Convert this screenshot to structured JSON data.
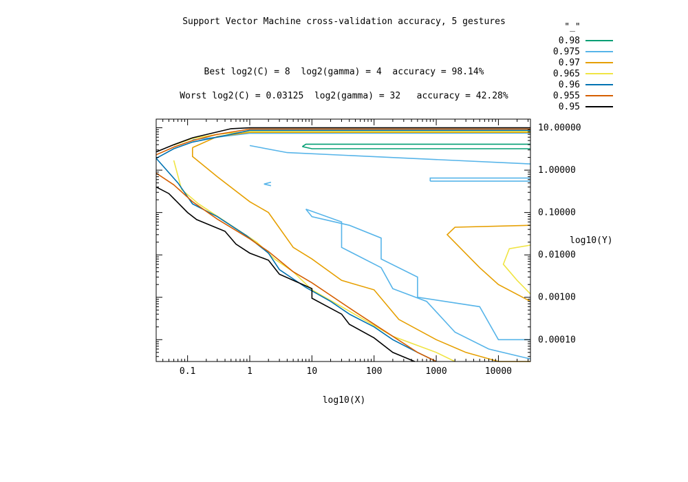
{
  "chart_data": {
    "type": "contour",
    "title": "Support Vector Machine cross-validation accuracy, 5 gestures",
    "subtitle_best": "Best log2(C) = 8  log2(gamma) = 4  accuracy = 98.14%",
    "subtitle_worst": "Worst log2(C) = 0.03125  log2(gamma) = 32   accuracy = 42.28%",
    "xlabel": "log10(X)",
    "ylabel": "log10(Y)",
    "x_scale": "log",
    "y_scale": "log",
    "xlim": [
      0.03125,
      32768
    ],
    "ylim": [
      3.05e-05,
      16
    ],
    "x_ticks": [
      "0.1",
      "1",
      "10",
      "100",
      "1000",
      "10000"
    ],
    "y_ticks": [
      "10.00000",
      "1.00000",
      "0.10000",
      "0.01000",
      "0.00100",
      "0.00010"
    ],
    "legend_title": "\"_\"",
    "legend_position": "top-right",
    "grid": false,
    "levels": [
      {
        "name": "0.98",
        "color": "#009e73",
        "paths": [
          [
            [
              7,
              3.6
            ],
            [
              8,
              4.1
            ],
            [
              32768,
              4.1
            ]
          ],
          [
            [
              7,
              3.6
            ],
            [
              10,
              3.2
            ],
            [
              32768,
              3.2
            ]
          ]
        ]
      },
      {
        "name": "0.975",
        "color": "#56b4e9",
        "paths": [
          [
            [
              32768,
              7.5
            ],
            [
              1,
              7.4
            ],
            [
              0.3,
              6
            ],
            [
              0.12,
              5.2
            ]
          ],
          [
            [
              1,
              3.8
            ],
            [
              4,
              2.6
            ],
            [
              32768,
              1.4
            ]
          ],
          [
            [
              800,
              0.55
            ],
            [
              32768,
              0.55
            ]
          ],
          [
            [
              800,
              0.55
            ],
            [
              800,
              0.65
            ],
            [
              32768,
              0.65
            ]
          ],
          [
            [
              2.2,
              0.52
            ],
            [
              1.7,
              0.47
            ],
            [
              2.2,
              0.43
            ]
          ],
          [
            [
              8,
              0.12
            ],
            [
              10,
              0.08
            ],
            [
              40,
              0.05
            ],
            [
              130,
              0.025
            ],
            [
              130,
              0.008
            ],
            [
              500,
              0.003
            ],
            [
              500,
              0.001
            ],
            [
              5000,
              0.0006
            ],
            [
              10000,
              0.0001
            ],
            [
              32768,
              0.0001
            ]
          ],
          [
            [
              8,
              0.12
            ],
            [
              30,
              0.06
            ],
            [
              30,
              0.015
            ],
            [
              130,
              0.005
            ],
            [
              200,
              0.0016
            ],
            [
              700,
              0.0008
            ],
            [
              2000,
              0.00015
            ],
            [
              7000,
              6e-05
            ],
            [
              32768,
              3.5e-05
            ]
          ]
        ]
      },
      {
        "name": "0.97",
        "color": "#e69f00",
        "paths": [
          [
            [
              0.12,
              3.4
            ],
            [
              0.3,
              6.2
            ],
            [
              1,
              7.8
            ],
            [
              32768,
              7.8
            ]
          ],
          [
            [
              0.12,
              3.4
            ],
            [
              0.12,
              2.1
            ],
            [
              0.3,
              0.7
            ],
            [
              1,
              0.18
            ],
            [
              2,
              0.1
            ],
            [
              5,
              0.015
            ],
            [
              10,
              0.008
            ],
            [
              30,
              0.0025
            ],
            [
              100,
              0.0015
            ],
            [
              250,
              0.0003
            ],
            [
              1000,
              0.0001
            ],
            [
              3000,
              5e-05
            ],
            [
              10000,
              3e-05
            ],
            [
              32768,
              2e-05
            ]
          ],
          [
            [
              32768,
              0.05
            ],
            [
              2000,
              0.045
            ],
            [
              1500,
              0.03
            ],
            [
              5000,
              0.005
            ],
            [
              10000,
              0.002
            ],
            [
              32768,
              0.0008
            ]
          ]
        ]
      },
      {
        "name": "0.965",
        "color": "#f0e442",
        "paths": [
          [
            [
              0.06,
              3.9
            ],
            [
              0.12,
              5.6
            ],
            [
              0.3,
              7
            ],
            [
              1,
              8.2
            ],
            [
              32768,
              8.2
            ]
          ],
          [
            [
              0.06,
              1.7
            ],
            [
              0.08,
              0.35
            ],
            [
              0.15,
              0.16
            ],
            [
              0.5,
              0.05
            ],
            [
              1.3,
              0.02
            ],
            [
              2.5,
              0.008
            ],
            [
              5,
              0.004
            ],
            [
              10,
              0.0015
            ],
            [
              30,
              0.0006
            ],
            [
              200,
              0.00012
            ],
            [
              1000,
              5e-05
            ],
            [
              2000,
              3e-05
            ]
          ],
          [
            [
              32768,
              0.017
            ],
            [
              15000,
              0.014
            ],
            [
              12000,
              0.006
            ],
            [
              20000,
              0.0025
            ],
            [
              32768,
              0.0012
            ]
          ]
        ]
      },
      {
        "name": "0.96",
        "color": "#0072b2",
        "paths": [
          [
            [
              0.03125,
              1.9
            ],
            [
              0.06,
              3.2
            ],
            [
              0.12,
              4.6
            ],
            [
              0.3,
              6
            ],
            [
              1,
              8.7
            ],
            [
              32768,
              8.7
            ]
          ],
          [
            [
              0.03125,
              1.9
            ],
            [
              0.07,
              0.5
            ],
            [
              0.12,
              0.16
            ],
            [
              0.3,
              0.08
            ],
            [
              0.9,
              0.028
            ],
            [
              2,
              0.011
            ],
            [
              3,
              0.0045
            ],
            [
              8,
              0.0017
            ],
            [
              20,
              0.0008
            ],
            [
              40,
              0.0004
            ],
            [
              100,
              0.0002
            ],
            [
              200,
              0.0001
            ],
            [
              500,
              5e-05
            ],
            [
              1000,
              3e-05
            ]
          ]
        ]
      },
      {
        "name": "0.955",
        "color": "#d55e00",
        "paths": [
          [
            [
              0.03125,
              2.3
            ],
            [
              0.06,
              3.5
            ],
            [
              0.12,
              5
            ],
            [
              0.3,
              7
            ],
            [
              1,
              9.3
            ],
            [
              32768,
              9.3
            ]
          ],
          [
            [
              0.03125,
              0.85
            ],
            [
              0.06,
              0.45
            ],
            [
              0.12,
              0.18
            ],
            [
              0.3,
              0.07
            ],
            [
              1,
              0.024
            ],
            [
              2,
              0.012
            ],
            [
              5,
              0.004
            ],
            [
              10,
              0.0022
            ],
            [
              50,
              0.00045
            ],
            [
              200,
              0.00012
            ],
            [
              500,
              5e-05
            ],
            [
              1000,
              3e-05
            ]
          ]
        ]
      },
      {
        "name": "0.95",
        "color": "#000000",
        "paths": [
          [
            [
              0.03125,
              2.7
            ],
            [
              0.06,
              4
            ],
            [
              0.12,
              5.8
            ],
            [
              0.5,
              9.5
            ],
            [
              1,
              10
            ],
            [
              32768,
              10
            ]
          ],
          [
            [
              0.03125,
              0.4
            ],
            [
              0.05,
              0.28
            ],
            [
              0.1,
              0.1
            ],
            [
              0.14,
              0.068
            ],
            [
              0.4,
              0.036
            ],
            [
              0.6,
              0.018
            ],
            [
              1,
              0.011
            ],
            [
              2,
              0.0075
            ],
            [
              3,
              0.0035
            ],
            [
              10,
              0.0016
            ],
            [
              10,
              0.00095
            ],
            [
              30,
              0.0004
            ],
            [
              40,
              0.00023
            ],
            [
              100,
              0.00011
            ],
            [
              200,
              5e-05
            ],
            [
              450,
              3e-05
            ]
          ]
        ]
      }
    ]
  }
}
